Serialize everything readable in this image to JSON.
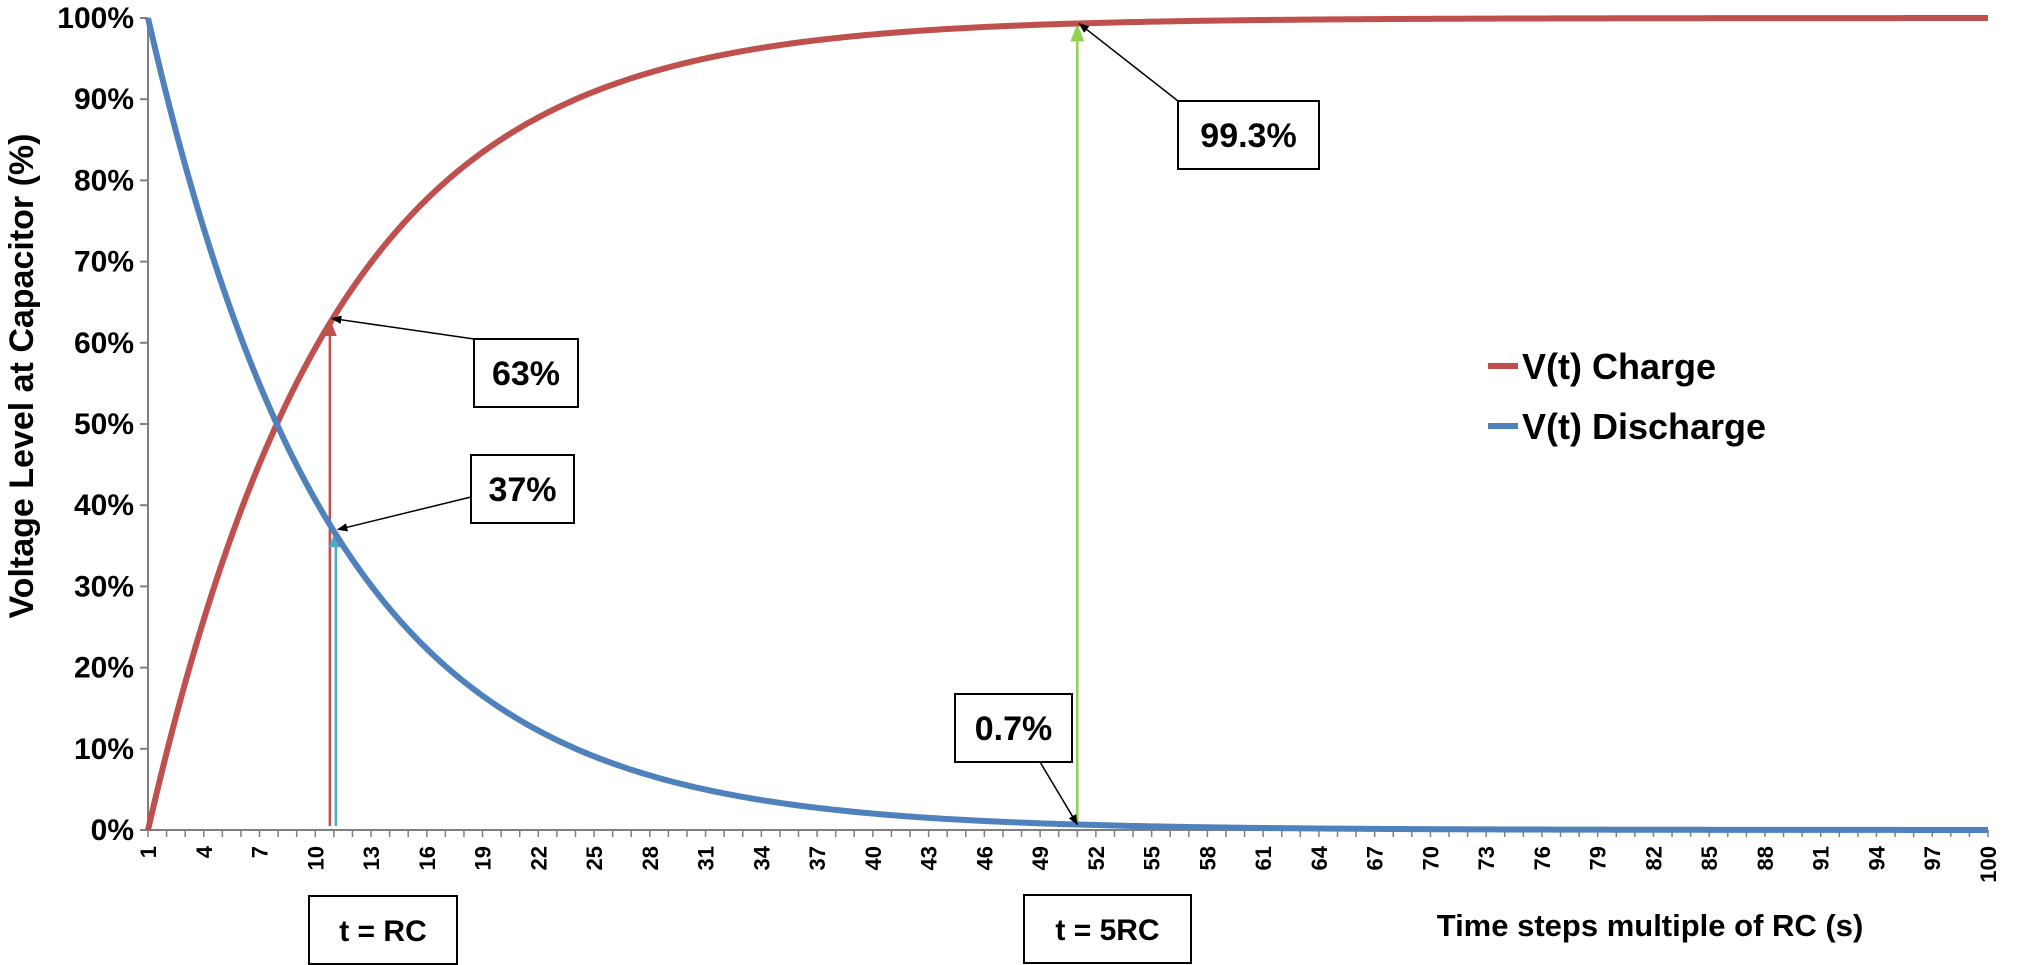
{
  "chart_data": {
    "type": "line",
    "title": "",
    "ylabel": "Voltage Level at Capacitor (%)",
    "xlabel": "Time steps multiple of  RC (s)",
    "x_range": [
      1,
      100
    ],
    "ylim": [
      0,
      100
    ],
    "y_ticks": [
      "0%",
      "10%",
      "20%",
      "30%",
      "40%",
      "50%",
      "60%",
      "70%",
      "80%",
      "90%",
      "100%"
    ],
    "x_ticks": [
      "1",
      "4",
      "7",
      "10",
      "13",
      "16",
      "19",
      "22",
      "25",
      "28",
      "31",
      "34",
      "37",
      "40",
      "43",
      "46",
      "49",
      "52",
      "55",
      "58",
      "61",
      "64",
      "67",
      "70",
      "73",
      "76",
      "79",
      "82",
      "85",
      "88",
      "91",
      "94",
      "97",
      "100"
    ],
    "time_constant_steps": 10,
    "series": [
      {
        "name": "V(t) Charge",
        "color": "#c0504d",
        "formula": "100*(1-exp(-(x-1)/10))"
      },
      {
        "name": "V(t) Discharge",
        "color": "#4f81bd",
        "formula": "100*exp(-(x-1)/10)"
      }
    ],
    "annotations": [
      {
        "label": "63%",
        "x": 11,
        "y": 63,
        "arrow_color": "#c0504d"
      },
      {
        "label": "37%",
        "x": 11,
        "y": 37,
        "arrow_color": "#4bacc6"
      },
      {
        "label": "99.3%",
        "x": 51,
        "y": 99.3,
        "arrow_color": "#92d050"
      },
      {
        "label": "0.7%",
        "x": 51,
        "y": 0.7,
        "arrow_color": "#92d050"
      }
    ],
    "boxes": [
      {
        "label": "t = RC",
        "x": 11
      },
      {
        "label": "t = 5RC",
        "x": 51
      }
    ],
    "legend": {
      "position": "right"
    }
  }
}
